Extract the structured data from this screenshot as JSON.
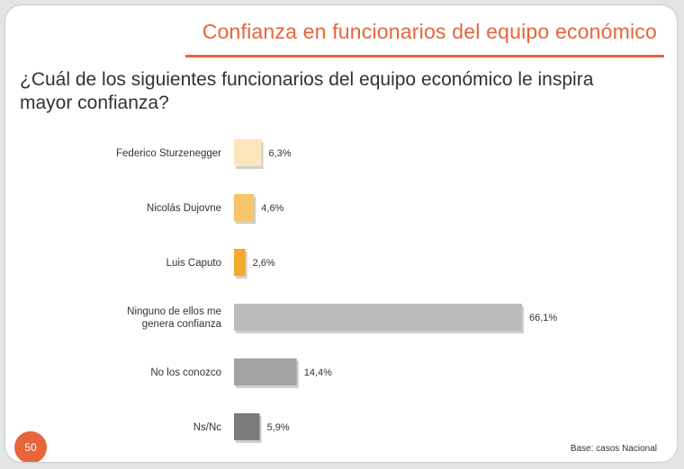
{
  "header": {
    "title": "Confianza en funcionarios del equipo económico",
    "question": "¿Cuál de los siguientes funcionarios del equipo económico le inspira mayor confianza?"
  },
  "footer": {
    "page_number": "50",
    "base_note": "Base: casos Nacional"
  },
  "colors": {
    "accent": "#e8643a"
  },
  "chart_data": {
    "type": "bar",
    "orientation": "horizontal",
    "categories": [
      [
        "Federico Sturzenegger"
      ],
      [
        "Nicolás Dujovne"
      ],
      [
        "Luis Caputo"
      ],
      [
        "Ninguno de ellos me",
        "genera confianza"
      ],
      [
        "No los conozco"
      ],
      [
        "Ns/Nc"
      ]
    ],
    "values": [
      6.3,
      4.6,
      2.6,
      66.1,
      14.4,
      5.9
    ],
    "value_labels": [
      "6,3%",
      "4,6%",
      "2,6%",
      "66,1%",
      "14,4%",
      "5,9%"
    ],
    "bar_colors": [
      "#fde6bd",
      "#f8c468",
      "#f2aa2b",
      "#bcbcbc",
      "#a3a3a3",
      "#7b7b7b"
    ],
    "xlim": [
      0,
      100
    ],
    "grid": false,
    "legend": "none"
  }
}
